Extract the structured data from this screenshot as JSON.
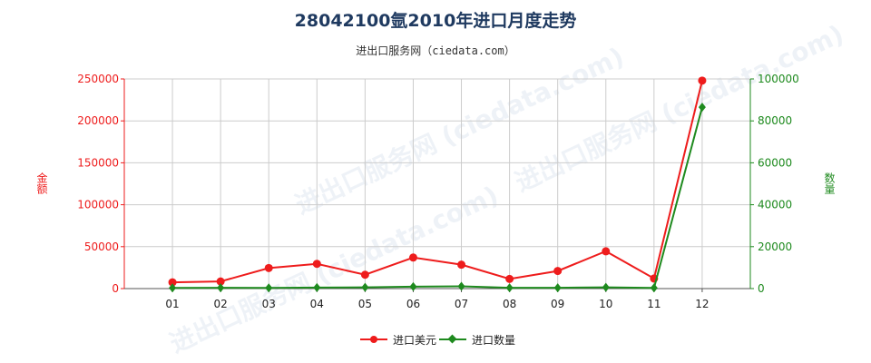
{
  "title": "28042100氩2010年进口月度走势",
  "subtitle": "进出口服务网（ciedata.com）",
  "watermark": "进出口服务网 (ciedata.com)",
  "colors": {
    "left": "#ee1c1c",
    "right": "#1e8a1e",
    "grid": "#cccccc"
  },
  "chart_data": {
    "type": "line",
    "categories": [
      "01",
      "02",
      "03",
      "04",
      "05",
      "06",
      "07",
      "08",
      "09",
      "10",
      "11",
      "12"
    ],
    "ylabel_left": "金额",
    "ylabel_right": "数量",
    "ylim_left": [
      0,
      250000
    ],
    "ylim_right": [
      0,
      100000
    ],
    "yticks_left": [
      "0",
      "50000",
      "100000",
      "150000",
      "200000",
      "250000"
    ],
    "yticks_right": [
      "0",
      "20000",
      "40000",
      "60000",
      "80000",
      "100000"
    ],
    "grid": true,
    "legend_position": "bottom",
    "series": [
      {
        "name": "进口美元",
        "axis": "left",
        "color": "#ee1c1c",
        "marker": "circle",
        "values": [
          7500,
          8500,
          24500,
          29500,
          16500,
          37000,
          28500,
          11500,
          21000,
          44500,
          12000,
          248000
        ]
      },
      {
        "name": "进口数量",
        "axis": "right",
        "color": "#1e8a1e",
        "marker": "diamond",
        "values": [
          300,
          400,
          300,
          500,
          600,
          900,
          1100,
          400,
          400,
          600,
          300,
          86500
        ]
      }
    ]
  }
}
